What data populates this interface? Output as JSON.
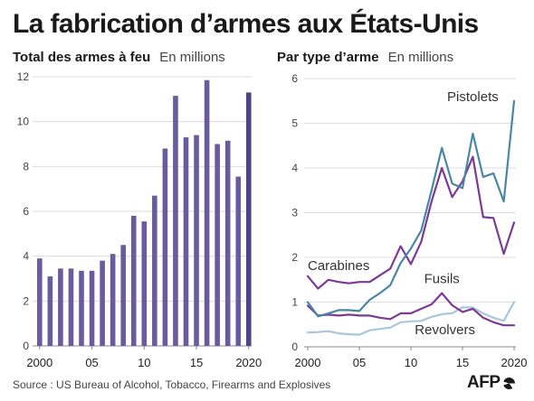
{
  "title": "La fabrication d’armes aux États-Unis",
  "source": "Source : US Bureau of Alcohol, Tobacco, Firearms and Explosives",
  "logo": "AFP",
  "colors": {
    "bars": "#6a5a9e",
    "bar_last": "#4f4288",
    "pistolets": "#4a87a6",
    "carabines": "#7b3a93",
    "fusils": "#7b3a93",
    "revolvers": "#a8c6dc",
    "grid": "#dcdcdc",
    "axis": "#888888"
  },
  "chart_data": [
    {
      "type": "bar",
      "title": "Total des armes à feu",
      "unit": "En millions",
      "x": [
        2000,
        2001,
        2002,
        2003,
        2004,
        2005,
        2006,
        2007,
        2008,
        2009,
        2010,
        2011,
        2012,
        2013,
        2014,
        2015,
        2016,
        2017,
        2018,
        2019,
        2020
      ],
      "values": [
        3.9,
        3.1,
        3.45,
        3.45,
        3.35,
        3.35,
        3.8,
        4.1,
        4.5,
        5.8,
        5.55,
        6.7,
        8.8,
        11.15,
        9.3,
        9.4,
        11.85,
        9.0,
        9.15,
        7.55,
        11.3
      ],
      "xticks": [
        "2000",
        "05",
        "10",
        "15",
        "2020"
      ],
      "xtick_positions": [
        2000,
        2005,
        2010,
        2015,
        2020
      ],
      "yticks": [
        "0",
        "2",
        "4",
        "6",
        "8",
        "10",
        "12"
      ],
      "ylim": [
        0,
        12
      ],
      "grid": true
    },
    {
      "type": "line",
      "title": "Par type d’arme",
      "unit": "En millions",
      "x": [
        2000,
        2001,
        2002,
        2003,
        2004,
        2005,
        2006,
        2007,
        2008,
        2009,
        2010,
        2011,
        2012,
        2013,
        2014,
        2015,
        2016,
        2017,
        2018,
        2019,
        2020
      ],
      "series": [
        {
          "name": "Pistolets",
          "key": "pistolets",
          "values": [
            1.0,
            0.68,
            0.75,
            0.82,
            0.82,
            0.8,
            1.05,
            1.2,
            1.38,
            1.87,
            2.2,
            2.6,
            3.5,
            4.45,
            3.65,
            3.55,
            4.77,
            3.8,
            3.88,
            3.25,
            5.5
          ]
        },
        {
          "name": "Carabines",
          "key": "carabines",
          "values": [
            1.58,
            1.3,
            1.5,
            1.45,
            1.42,
            1.45,
            1.45,
            1.6,
            1.75,
            2.25,
            1.85,
            2.35,
            3.25,
            4.0,
            3.35,
            3.7,
            4.25,
            2.9,
            2.88,
            2.08,
            2.78
          ]
        },
        {
          "name": "Fusils",
          "key": "fusils",
          "values": [
            0.92,
            0.7,
            0.72,
            0.7,
            0.72,
            0.7,
            0.7,
            0.65,
            0.62,
            0.75,
            0.75,
            0.85,
            0.95,
            1.2,
            0.93,
            0.78,
            0.85,
            0.65,
            0.55,
            0.48,
            0.48
          ]
        },
        {
          "name": "Revolvers",
          "key": "revolvers",
          "values": [
            0.32,
            0.33,
            0.35,
            0.3,
            0.28,
            0.27,
            0.37,
            0.4,
            0.43,
            0.55,
            0.57,
            0.58,
            0.67,
            0.73,
            0.75,
            0.88,
            0.88,
            0.75,
            0.65,
            0.58,
            1.0
          ]
        }
      ],
      "xticks": [
        "2000",
        "05",
        "10",
        "15",
        "2020"
      ],
      "xtick_positions": [
        2000,
        2005,
        2010,
        2015,
        2020
      ],
      "yticks": [
        "0",
        "1",
        "2",
        "3",
        "4",
        "5",
        "6"
      ],
      "ylim": [
        0,
        6
      ],
      "grid": true
    }
  ]
}
